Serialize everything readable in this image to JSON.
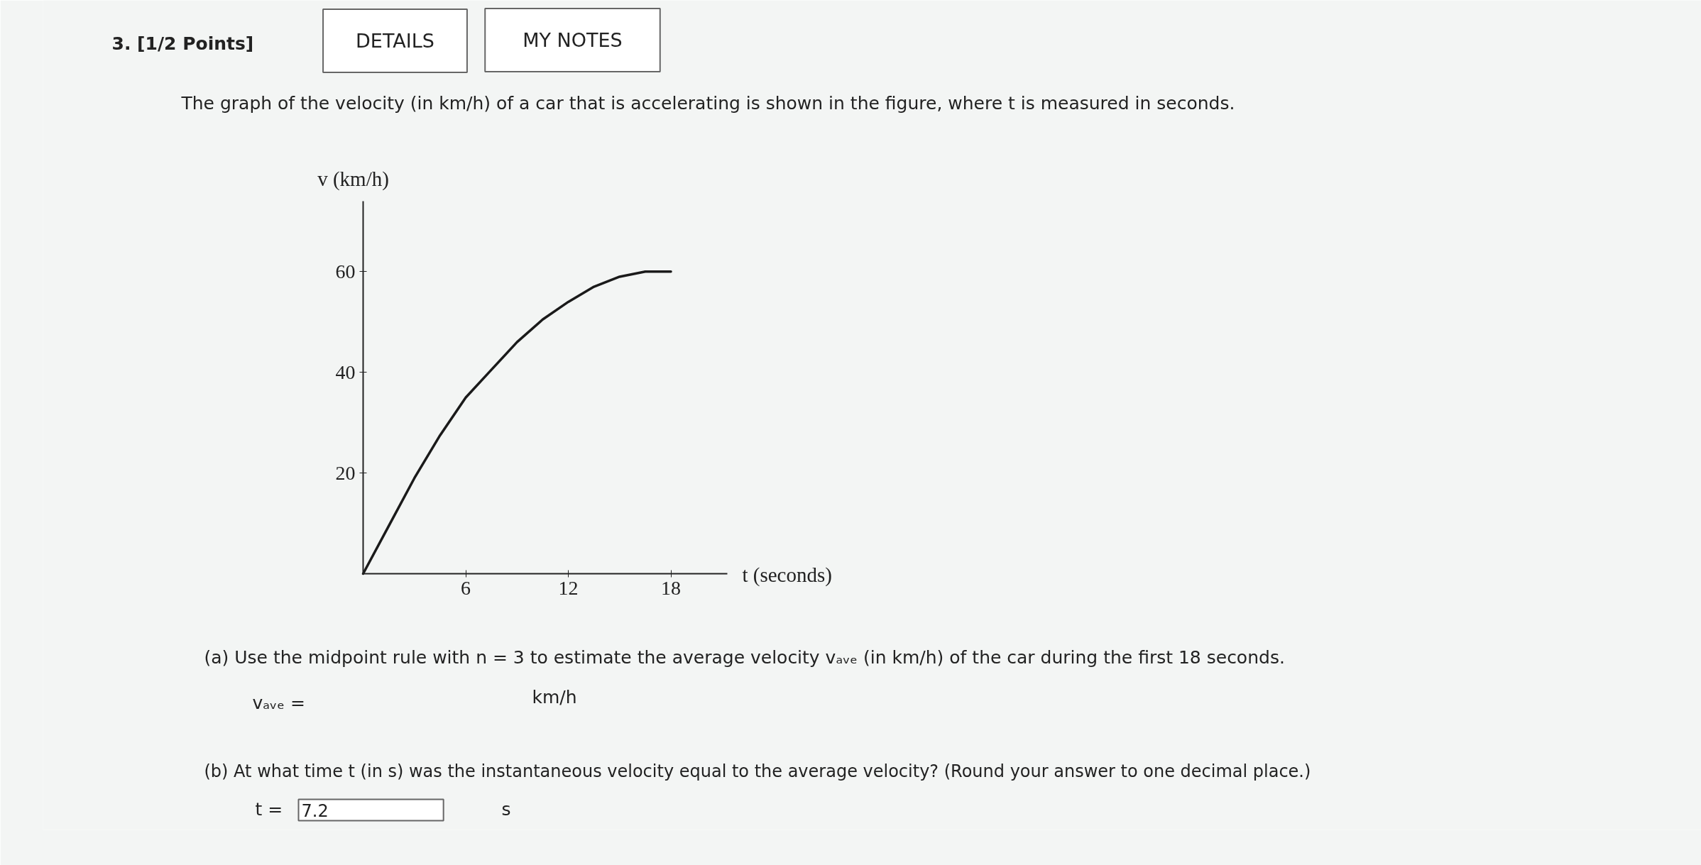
{
  "chart_data": {
    "type": "line",
    "title": "The graph of the velocity (in km/h) of a car that is accelerating is shown in the figure, where t is measured in seconds.",
    "xlabel": "t (seconds)",
    "ylabel": "v (km/h)",
    "x": [
      0,
      1.5,
      3,
      4.5,
      6,
      7.5,
      9,
      10.5,
      12,
      13.5,
      15,
      16.5,
      18
    ],
    "series": [
      {
        "color": "#1a1a1a",
        "values": [
          0,
          9.5,
          19,
          27.5,
          35,
          40.5,
          46,
          50.5,
          54,
          57,
          59,
          60,
          60
        ]
      }
    ],
    "xlim": [
      0,
      21.3
    ],
    "ylim": [
      0,
      74
    ],
    "xticks": [
      6,
      12,
      18
    ],
    "yticks": [
      20,
      40,
      60
    ],
    "line_style": "solid",
    "annotations": [
      "3. [1/2 Points]",
      "DETAILS",
      "MY NOTES",
      "(a) Use the midpoint rule with n = 3 to estimate the average velocity vₐᵥₑ (in km/h) of the car during the first 18 seconds.",
      "vₐᵥₑ =",
      "km/h",
      "(b) At what time t (in s) was the instantaneous velocity equal to the average velocity? (Round your answer to one decimal place.)",
      "t =",
      "7.2",
      "s"
    ]
  }
}
